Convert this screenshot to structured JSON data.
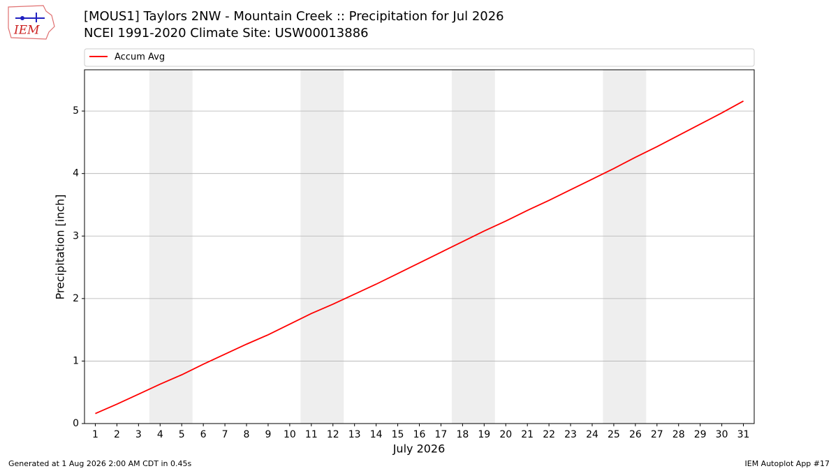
{
  "chart_data": {
    "type": "line",
    "logo": "IEM",
    "title": "[MOUS1] Taylors 2NW - Mountain Creek :: Precipitation for Jul 2026",
    "subtitle": "NCEI 1991-2020 Climate Site: USW00013886",
    "x_label": "July 2026",
    "y_label": "Precipitation [inch]",
    "x": [
      1,
      2,
      3,
      4,
      5,
      6,
      7,
      8,
      9,
      10,
      11,
      12,
      13,
      14,
      15,
      16,
      17,
      18,
      19,
      20,
      21,
      22,
      23,
      24,
      25,
      26,
      27,
      28,
      29,
      30,
      31
    ],
    "series": [
      {
        "name": "Accum Avg",
        "color": "#ff0000",
        "values": [
          0.16,
          0.31,
          0.47,
          0.63,
          0.78,
          0.95,
          1.11,
          1.27,
          1.42,
          1.59,
          1.76,
          1.91,
          2.07,
          2.23,
          2.4,
          2.57,
          2.74,
          2.91,
          3.08,
          3.24,
          3.41,
          3.57,
          3.74,
          3.91,
          4.08,
          4.26,
          4.43,
          4.61,
          4.79,
          4.97,
          5.16
        ]
      }
    ],
    "xlim": [
      0.5,
      31.5
    ],
    "ylim": [
      0,
      5.66
    ],
    "xticks": [
      1,
      2,
      3,
      4,
      5,
      6,
      7,
      8,
      9,
      10,
      11,
      12,
      13,
      14,
      15,
      16,
      17,
      18,
      19,
      20,
      21,
      22,
      23,
      24,
      25,
      26,
      27,
      28,
      29,
      30,
      31
    ],
    "yticks": [
      0,
      1,
      2,
      3,
      4,
      5
    ],
    "grid": "y",
    "shaded_x_ranges": [
      [
        3.5,
        5.5
      ],
      [
        10.5,
        12.5
      ],
      [
        17.5,
        19.5
      ],
      [
        24.5,
        26.5
      ]
    ],
    "shade_color": "#eeeeee",
    "legend": "top",
    "footer_left": "Generated at 1 Aug 2026 2:00 AM CDT in 0.45s",
    "footer_right": "IEM Autoplot App #17"
  }
}
